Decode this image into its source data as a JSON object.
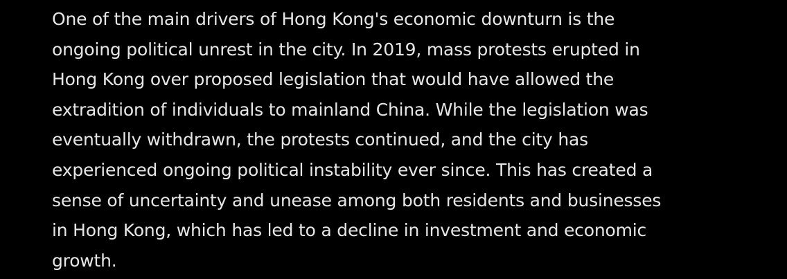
{
  "paragraph": {
    "lines": [
      "One of the main drivers of Hong Kong's economic downturn is the",
      "ongoing political unrest in the city. In 2019, mass protests erupted in",
      "Hong Kong over proposed legislation that would have allowed the",
      "extradition of individuals to mainland China. While the legislation was",
      "eventually withdrawn, the protests continued, and the city has",
      "experienced ongoing political instability ever since. This has created a",
      "sense of uncertainty and unease among both residents and businesses",
      "in Hong Kong, which has led to a decline in investment and economic",
      "growth."
    ]
  },
  "colors": {
    "background": "#000000",
    "text": "#e6e6e6"
  }
}
